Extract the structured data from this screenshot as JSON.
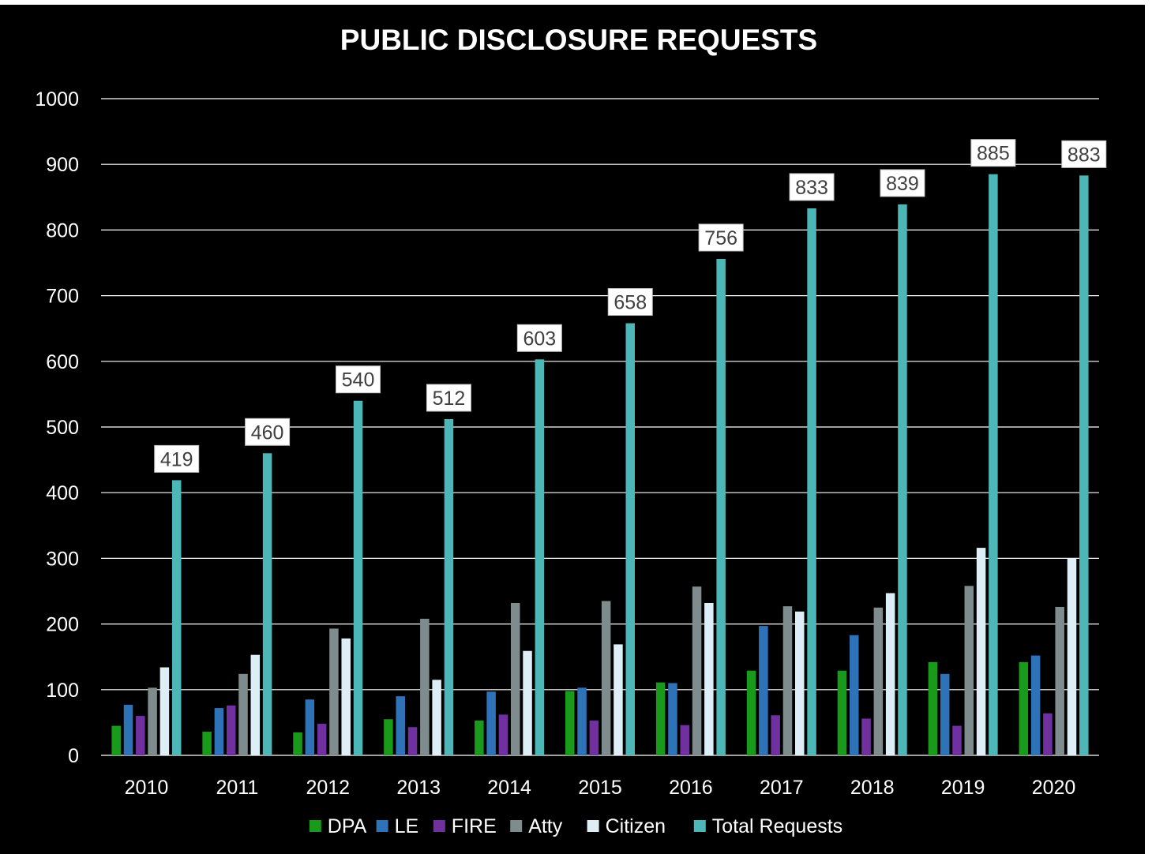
{
  "chart_data": {
    "type": "bar",
    "title": "PUBLIC DISCLOSURE REQUESTS",
    "categories": [
      "2010",
      "2011",
      "2012",
      "2013",
      "2014",
      "2015",
      "2016",
      "2017",
      "2018",
      "2019",
      "2020"
    ],
    "ylim": [
      0,
      1000
    ],
    "yticks": [
      0,
      100,
      200,
      300,
      400,
      500,
      600,
      700,
      800,
      900,
      1000
    ],
    "grid": true,
    "legend_position": "bottom",
    "series": [
      {
        "name": "DPA",
        "color": "#1a9a1a",
        "values": [
          45,
          36,
          35,
          55,
          53,
          98,
          111,
          129,
          129,
          142,
          142
        ]
      },
      {
        "name": "LE",
        "color": "#2e73b8",
        "values": [
          77,
          72,
          85,
          90,
          97,
          103,
          110,
          197,
          183,
          124,
          152
        ]
      },
      {
        "name": "FIRE",
        "color": "#7030a0",
        "values": [
          60,
          76,
          48,
          43,
          62,
          53,
          46,
          61,
          56,
          45,
          64
        ]
      },
      {
        "name": "Atty",
        "color": "#7f8c8d",
        "values": [
          103,
          124,
          193,
          208,
          232,
          235,
          257,
          227,
          225,
          258,
          226
        ]
      },
      {
        "name": "Citizen",
        "color": "#ddeef6",
        "values": [
          134,
          153,
          178,
          115,
          159,
          169,
          232,
          219,
          247,
          316,
          300
        ]
      },
      {
        "name": "Total Requests",
        "color": "#4db6b6",
        "values": [
          419,
          460,
          540,
          512,
          603,
          658,
          756,
          833,
          839,
          885,
          883
        ],
        "data_labels": true
      }
    ]
  }
}
